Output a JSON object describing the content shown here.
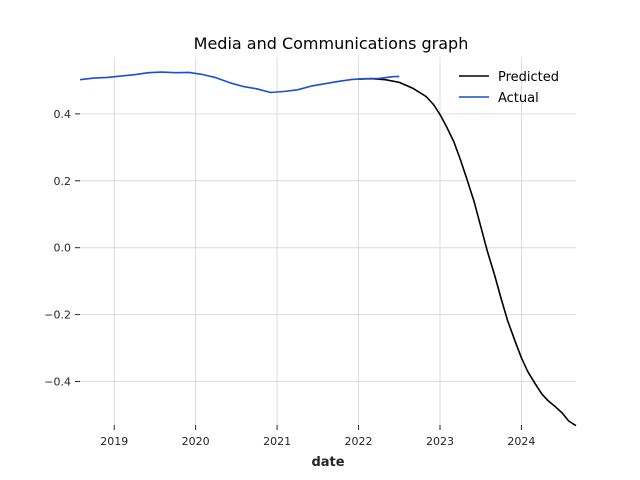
{
  "chart_data": {
    "type": "line",
    "title": "Media and Communications graph",
    "xlabel": "date",
    "ylabel": "",
    "x_ticks": [
      "2019",
      "2020",
      "2021",
      "2022",
      "2023",
      "2024"
    ],
    "y_ticks": [
      "0.4",
      "0.2",
      "0.0",
      "−0.2",
      "−0.4"
    ],
    "xlim": [
      2018.58,
      2024.67
    ],
    "ylim": [
      -0.53,
      0.57
    ],
    "grid": true,
    "legend_position": "top-right",
    "series": [
      {
        "name": "Predicted",
        "color": "#000000",
        "points": [
          [
            2022.0,
            0.504
          ],
          [
            2022.17,
            0.505
          ],
          [
            2022.33,
            0.502
          ],
          [
            2022.5,
            0.494
          ],
          [
            2022.67,
            0.476
          ],
          [
            2022.83,
            0.452
          ],
          [
            2022.92,
            0.428
          ],
          [
            2023.0,
            0.398
          ],
          [
            2023.08,
            0.362
          ],
          [
            2023.17,
            0.317
          ],
          [
            2023.25,
            0.264
          ],
          [
            2023.33,
            0.205
          ],
          [
            2023.42,
            0.137
          ],
          [
            2023.5,
            0.064
          ],
          [
            2023.58,
            -0.009
          ],
          [
            2023.67,
            -0.082
          ],
          [
            2023.75,
            -0.152
          ],
          [
            2023.83,
            -0.218
          ],
          [
            2023.92,
            -0.278
          ],
          [
            2024.0,
            -0.329
          ],
          [
            2024.08,
            -0.371
          ],
          [
            2024.17,
            -0.407
          ],
          [
            2024.25,
            -0.437
          ],
          [
            2024.33,
            -0.458
          ],
          [
            2024.42,
            -0.476
          ],
          [
            2024.5,
            -0.494
          ],
          [
            2024.58,
            -0.518
          ],
          [
            2024.67,
            -0.532
          ]
        ]
      },
      {
        "name": "Actual",
        "color": "#1a4ed8",
        "points": [
          [
            2018.58,
            0.502
          ],
          [
            2018.75,
            0.507
          ],
          [
            2018.92,
            0.509
          ],
          [
            2019.08,
            0.513
          ],
          [
            2019.25,
            0.517
          ],
          [
            2019.42,
            0.523
          ],
          [
            2019.58,
            0.525
          ],
          [
            2019.75,
            0.523
          ],
          [
            2019.92,
            0.524
          ],
          [
            2020.08,
            0.518
          ],
          [
            2020.25,
            0.508
          ],
          [
            2020.42,
            0.493
          ],
          [
            2020.58,
            0.482
          ],
          [
            2020.75,
            0.475
          ],
          [
            2020.92,
            0.464
          ],
          [
            2021.08,
            0.467
          ],
          [
            2021.25,
            0.472
          ],
          [
            2021.42,
            0.483
          ],
          [
            2021.58,
            0.49
          ],
          [
            2021.75,
            0.497
          ],
          [
            2021.92,
            0.503
          ],
          [
            2022.08,
            0.505
          ],
          [
            2022.25,
            0.506
          ],
          [
            2022.42,
            0.511
          ],
          [
            2022.5,
            0.512
          ]
        ]
      }
    ]
  }
}
